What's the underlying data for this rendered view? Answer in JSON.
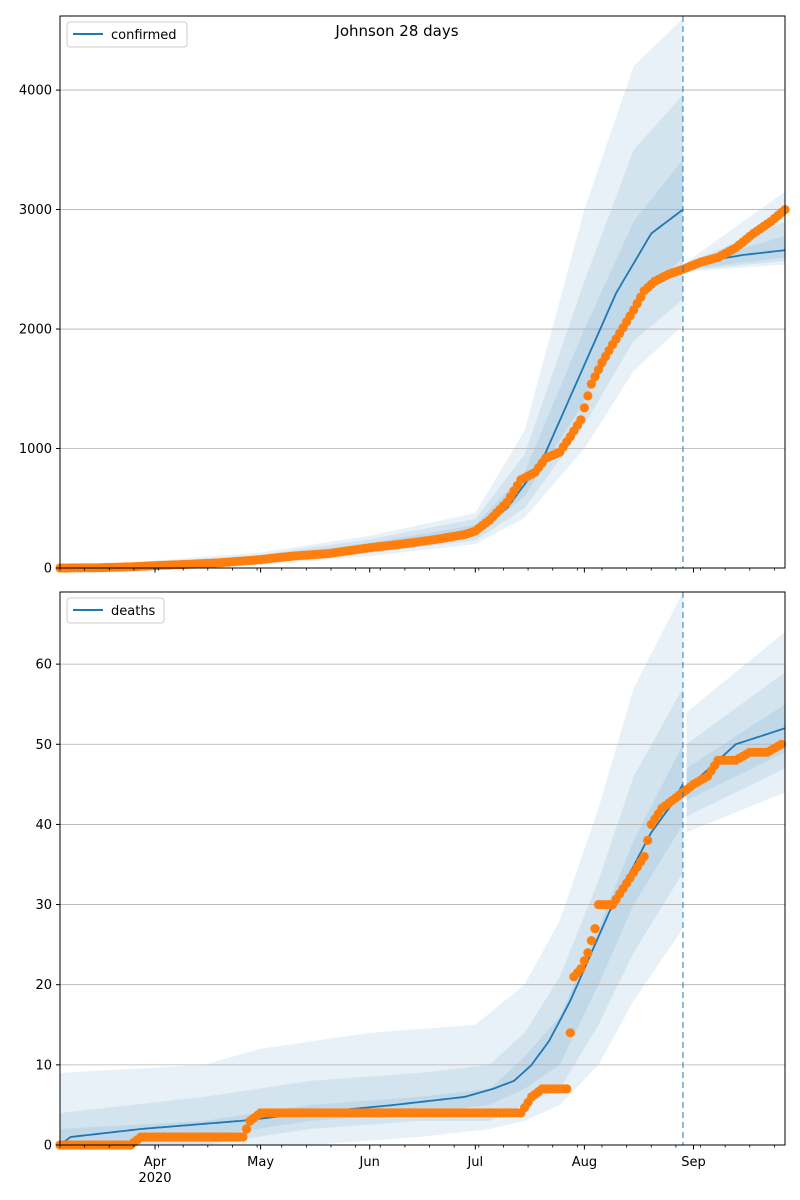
{
  "figure": {
    "title": "Johnson 28 days"
  },
  "colors": {
    "model": "#1f77b4",
    "observed": "#ff7f0e",
    "band": "#1f77b4",
    "grid": "#b0b0b0",
    "forecast_line": "#1f77b4"
  },
  "x_axis": {
    "month_ticks": [
      {
        "date": "2020-04-01",
        "label": "Apr"
      },
      {
        "date": "2020-05-01",
        "label": "May"
      },
      {
        "date": "2020-06-01",
        "label": "Jun"
      },
      {
        "date": "2020-07-01",
        "label": "Jul"
      },
      {
        "date": "2020-08-01",
        "label": "Aug"
      },
      {
        "date": "2020-09-01",
        "label": "Sep"
      }
    ],
    "year_label": "2020",
    "range": [
      "2020-03-05",
      "2020-09-27"
    ],
    "forecast_start": "2020-08-29"
  },
  "chart_data": [
    {
      "type": "line",
      "title": "Johnson 28 days",
      "legend": {
        "label": "confirmed",
        "position": "top-left"
      },
      "grid": "horizontal",
      "ylim": [
        0,
        4620
      ],
      "yticks": [
        0,
        1000,
        2000,
        3000,
        4000
      ],
      "model_median": [
        [
          "2020-03-05",
          0
        ],
        [
          "2020-04-01",
          20
        ],
        [
          "2020-05-01",
          70
        ],
        [
          "2020-06-01",
          180
        ],
        [
          "2020-07-01",
          310
        ],
        [
          "2020-07-10",
          500
        ],
        [
          "2020-07-20",
          900
        ],
        [
          "2020-08-01",
          1700
        ],
        [
          "2020-08-10",
          2300
        ],
        [
          "2020-08-20",
          2800
        ],
        [
          "2020-08-29",
          3000
        ],
        [
          "2020-08-30",
          2510
        ],
        [
          "2020-09-05",
          2570
        ],
        [
          "2020-09-15",
          2620
        ],
        [
          "2020-09-27",
          2660
        ]
      ],
      "bands": [
        {
          "name": "inner",
          "upper": [
            [
              "2020-03-05",
              0
            ],
            [
              "2020-05-01",
              90
            ],
            [
              "2020-06-01",
              210
            ],
            [
              "2020-07-01",
              360
            ],
            [
              "2020-07-15",
              800
            ],
            [
              "2020-08-01",
              2000
            ],
            [
              "2020-08-15",
              2900
            ],
            [
              "2020-08-29",
              3420
            ],
            [
              "2020-08-30",
              2530
            ],
            [
              "2020-09-27",
              2780
            ]
          ],
          "lower": [
            [
              "2020-03-05",
              0
            ],
            [
              "2020-05-01",
              50
            ],
            [
              "2020-06-01",
              150
            ],
            [
              "2020-07-01",
              270
            ],
            [
              "2020-07-15",
              600
            ],
            [
              "2020-08-01",
              1400
            ],
            [
              "2020-08-15",
              2200
            ],
            [
              "2020-08-29",
              2600
            ],
            [
              "2020-08-30",
              2500
            ],
            [
              "2020-09-27",
              2600
            ]
          ]
        },
        {
          "name": "middle",
          "upper": [
            [
              "2020-03-05",
              0
            ],
            [
              "2020-05-01",
              110
            ],
            [
              "2020-06-01",
              240
            ],
            [
              "2020-07-01",
              410
            ],
            [
              "2020-07-15",
              950
            ],
            [
              "2020-08-01",
              2400
            ],
            [
              "2020-08-15",
              3500
            ],
            [
              "2020-08-29",
              3960
            ],
            [
              "2020-08-30",
              2550
            ],
            [
              "2020-09-27",
              2900
            ]
          ],
          "lower": [
            [
              "2020-03-05",
              0
            ],
            [
              "2020-05-01",
              35
            ],
            [
              "2020-06-01",
              125
            ],
            [
              "2020-07-01",
              230
            ],
            [
              "2020-07-15",
              500
            ],
            [
              "2020-08-01",
              1200
            ],
            [
              "2020-08-15",
              1900
            ],
            [
              "2020-08-29",
              2250
            ],
            [
              "2020-08-30",
              2490
            ],
            [
              "2020-09-27",
              2570
            ]
          ]
        },
        {
          "name": "outer",
          "upper": [
            [
              "2020-03-05",
              0
            ],
            [
              "2020-05-01",
              130
            ],
            [
              "2020-06-01",
              270
            ],
            [
              "2020-07-01",
              460
            ],
            [
              "2020-07-15",
              1150
            ],
            [
              "2020-08-01",
              3000
            ],
            [
              "2020-08-15",
              4200
            ],
            [
              "2020-08-29",
              4600
            ],
            [
              "2020-08-30",
              2560
            ],
            [
              "2020-09-27",
              3150
            ]
          ],
          "lower": [
            [
              "2020-03-05",
              0
            ],
            [
              "2020-05-01",
              25
            ],
            [
              "2020-06-01",
              100
            ],
            [
              "2020-07-01",
              200
            ],
            [
              "2020-07-15",
              420
            ],
            [
              "2020-08-01",
              1000
            ],
            [
              "2020-08-15",
              1650
            ],
            [
              "2020-08-29",
              2030
            ],
            [
              "2020-08-30",
              2480
            ],
            [
              "2020-09-27",
              2540
            ]
          ]
        }
      ],
      "observed": [
        [
          "2020-03-05",
          0
        ],
        [
          "2020-03-15",
          2
        ],
        [
          "2020-03-25",
          10
        ],
        [
          "2020-04-01",
          20
        ],
        [
          "2020-04-10",
          30
        ],
        [
          "2020-04-20",
          45
        ],
        [
          "2020-05-01",
          70
        ],
        [
          "2020-05-10",
          100
        ],
        [
          "2020-05-20",
          120
        ],
        [
          "2020-06-01",
          170
        ],
        [
          "2020-06-10",
          200
        ],
        [
          "2020-06-20",
          240
        ],
        [
          "2020-06-28",
          280
        ],
        [
          "2020-07-01",
          310
        ],
        [
          "2020-07-05",
          400
        ],
        [
          "2020-07-10",
          550
        ],
        [
          "2020-07-14",
          740
        ],
        [
          "2020-07-18",
          800
        ],
        [
          "2020-07-21",
          920
        ],
        [
          "2020-07-25",
          970
        ],
        [
          "2020-07-28",
          1100
        ],
        [
          "2020-07-31",
          1240
        ],
        [
          "2020-08-03",
          1540
        ],
        [
          "2020-08-06",
          1720
        ],
        [
          "2020-08-09",
          1870
        ],
        [
          "2020-08-12",
          2010
        ],
        [
          "2020-08-15",
          2160
        ],
        [
          "2020-08-18",
          2320
        ],
        [
          "2020-08-21",
          2400
        ],
        [
          "2020-08-25",
          2460
        ],
        [
          "2020-08-29",
          2500
        ],
        [
          "2020-09-03",
          2560
        ],
        [
          "2020-09-08",
          2600
        ],
        [
          "2020-09-13",
          2680
        ],
        [
          "2020-09-18",
          2800
        ],
        [
          "2020-09-23",
          2900
        ],
        [
          "2020-09-27",
          3000
        ]
      ]
    },
    {
      "type": "line",
      "legend": {
        "label": "deaths",
        "position": "top-left"
      },
      "grid": "horizontal",
      "ylim": [
        0,
        69
      ],
      "yticks": [
        0,
        10,
        20,
        30,
        40,
        50,
        60
      ],
      "model_median": [
        [
          "2020-03-05",
          0
        ],
        [
          "2020-03-08",
          1
        ],
        [
          "2020-03-28",
          2
        ],
        [
          "2020-04-25",
          3
        ],
        [
          "2020-05-15",
          4
        ],
        [
          "2020-06-08",
          5
        ],
        [
          "2020-06-28",
          6
        ],
        [
          "2020-07-06",
          7
        ],
        [
          "2020-07-12",
          8
        ],
        [
          "2020-07-17",
          10
        ],
        [
          "2020-07-22",
          13
        ],
        [
          "2020-07-28",
          18
        ],
        [
          "2020-08-02",
          23
        ],
        [
          "2020-08-08",
          29
        ],
        [
          "2020-08-14",
          34
        ],
        [
          "2020-08-20",
          39
        ],
        [
          "2020-08-25",
          42
        ],
        [
          "2020-08-29",
          45
        ],
        [
          "2020-08-30",
          44
        ],
        [
          "2020-09-03",
          46
        ],
        [
          "2020-09-08",
          48
        ],
        [
          "2020-09-13",
          50
        ],
        [
          "2020-09-20",
          51
        ],
        [
          "2020-09-27",
          52
        ]
      ],
      "bands": [
        {
          "name": "inner",
          "upper": [
            [
              "2020-03-05",
              2
            ],
            [
              "2020-04-15",
              3
            ],
            [
              "2020-05-15",
              5
            ],
            [
              "2020-06-15",
              6
            ],
            [
              "2020-07-05",
              7
            ],
            [
              "2020-07-15",
              11
            ],
            [
              "2020-07-25",
              16
            ],
            [
              "2020-08-05",
              27
            ],
            [
              "2020-08-15",
              38
            ],
            [
              "2020-08-29",
              50
            ],
            [
              "2020-08-30",
              47
            ],
            [
              "2020-09-27",
              55
            ]
          ],
          "lower": [
            [
              "2020-03-05",
              0
            ],
            [
              "2020-04-15",
              1
            ],
            [
              "2020-05-15",
              3
            ],
            [
              "2020-06-15",
              4
            ],
            [
              "2020-07-05",
              5
            ],
            [
              "2020-07-15",
              7
            ],
            [
              "2020-07-25",
              10
            ],
            [
              "2020-08-05",
              20
            ],
            [
              "2020-08-15",
              30
            ],
            [
              "2020-08-29",
              40
            ],
            [
              "2020-08-30",
              43
            ],
            [
              "2020-09-27",
              49
            ]
          ]
        },
        {
          "name": "middle",
          "upper": [
            [
              "2020-03-05",
              4
            ],
            [
              "2020-04-15",
              6
            ],
            [
              "2020-05-15",
              8
            ],
            [
              "2020-06-15",
              9
            ],
            [
              "2020-07-05",
              10
            ],
            [
              "2020-07-15",
              14
            ],
            [
              "2020-07-25",
              21
            ],
            [
              "2020-08-05",
              33
            ],
            [
              "2020-08-15",
              46
            ],
            [
              "2020-08-29",
              57
            ],
            [
              "2020-08-30",
              50
            ],
            [
              "2020-09-27",
              59
            ]
          ],
          "lower": [
            [
              "2020-03-05",
              0
            ],
            [
              "2020-04-15",
              0
            ],
            [
              "2020-05-15",
              2
            ],
            [
              "2020-06-15",
              3
            ],
            [
              "2020-07-05",
              3
            ],
            [
              "2020-07-15",
              5
            ],
            [
              "2020-07-25",
              7
            ],
            [
              "2020-08-05",
              15
            ],
            [
              "2020-08-15",
              24
            ],
            [
              "2020-08-29",
              34
            ],
            [
              "2020-08-30",
              41
            ],
            [
              "2020-09-27",
              47
            ]
          ]
        },
        {
          "name": "outer",
          "upper": [
            [
              "2020-03-05",
              9
            ],
            [
              "2020-04-15",
              10
            ],
            [
              "2020-05-01",
              12
            ],
            [
              "2020-06-01",
              14
            ],
            [
              "2020-07-01",
              15
            ],
            [
              "2020-07-15",
              20
            ],
            [
              "2020-07-25",
              28
            ],
            [
              "2020-08-05",
              42
            ],
            [
              "2020-08-15",
              57
            ],
            [
              "2020-08-29",
              69
            ],
            [
              "2020-08-30",
              54
            ],
            [
              "2020-09-27",
              64
            ]
          ],
          "lower": [
            [
              "2020-03-05",
              0
            ],
            [
              "2020-05-15",
              0
            ],
            [
              "2020-06-15",
              1
            ],
            [
              "2020-07-05",
              2
            ],
            [
              "2020-07-15",
              3
            ],
            [
              "2020-07-25",
              5
            ],
            [
              "2020-08-05",
              10
            ],
            [
              "2020-08-15",
              18
            ],
            [
              "2020-08-29",
              27
            ],
            [
              "2020-08-30",
              39
            ],
            [
              "2020-09-27",
              44
            ]
          ]
        }
      ],
      "observed": [
        [
          "2020-03-05",
          0
        ],
        [
          "2020-03-25",
          0
        ],
        [
          "2020-03-28",
          1
        ],
        [
          "2020-04-05",
          1
        ],
        [
          "2020-04-15",
          1
        ],
        [
          "2020-04-26",
          1
        ],
        [
          "2020-04-28",
          3
        ],
        [
          "2020-05-01",
          4
        ],
        [
          "2020-05-15",
          4
        ],
        [
          "2020-06-01",
          4
        ],
        [
          "2020-06-15",
          4
        ],
        [
          "2020-07-01",
          4
        ],
        [
          "2020-07-10",
          4
        ],
        [
          "2020-07-14",
          4
        ],
        [
          "2020-07-17",
          6
        ],
        [
          "2020-07-20",
          7
        ],
        [
          "2020-07-25",
          7
        ],
        [
          "2020-07-27",
          7
        ],
        [
          "2020-07-29",
          21
        ],
        [
          "2020-07-31",
          22
        ],
        [
          "2020-08-02",
          24
        ],
        [
          "2020-08-04",
          27
        ],
        [
          "2020-08-05",
          30
        ],
        [
          "2020-08-09",
          30
        ],
        [
          "2020-08-12",
          32
        ],
        [
          "2020-08-15",
          34
        ],
        [
          "2020-08-18",
          36
        ],
        [
          "2020-08-20",
          40
        ],
        [
          "2020-08-23",
          42
        ],
        [
          "2020-08-26",
          43
        ],
        [
          "2020-08-29",
          44
        ],
        [
          "2020-09-01",
          45
        ],
        [
          "2020-09-05",
          46
        ],
        [
          "2020-09-08",
          48
        ],
        [
          "2020-09-13",
          48
        ],
        [
          "2020-09-17",
          49
        ],
        [
          "2020-09-22",
          49
        ],
        [
          "2020-09-26",
          50
        ]
      ]
    }
  ]
}
